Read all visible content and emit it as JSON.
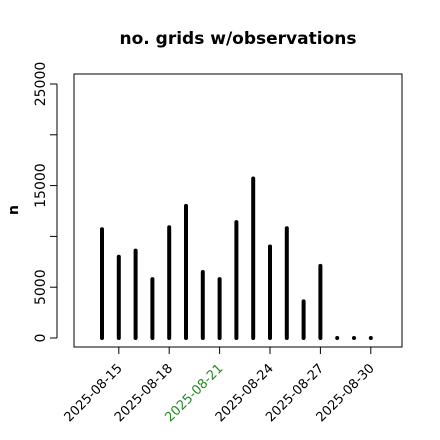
{
  "chart_data": {
    "type": "bar",
    "title": "no. grids w/observations",
    "xlabel": "",
    "ylabel": "n",
    "ylim": [
      0,
      26000
    ],
    "yticks": [
      0,
      5000,
      15000,
      25000
    ],
    "grid": false,
    "x": [
      "2025-08-14",
      "2025-08-15",
      "2025-08-16",
      "2025-08-17",
      "2025-08-18",
      "2025-08-19",
      "2025-08-20",
      "2025-08-21",
      "2025-08-22",
      "2025-08-23",
      "2025-08-24",
      "2025-08-25",
      "2025-08-26",
      "2025-08-27",
      "2025-08-28",
      "2025-08-29",
      "2025-08-30"
    ],
    "values": [
      10700,
      8000,
      8600,
      5800,
      10900,
      13000,
      6500,
      5800,
      11400,
      15700,
      9000,
      10800,
      3600,
      7100,
      0,
      0,
      0
    ],
    "xtick_labels": [
      {
        "label": "2025-08-15",
        "color": "#000000"
      },
      {
        "label": "2025-08-18",
        "color": "#000000"
      },
      {
        "label": "2025-08-21",
        "color": "#228B22"
      },
      {
        "label": "2025-08-24",
        "color": "#000000"
      },
      {
        "label": "2025-08-27",
        "color": "#000000"
      },
      {
        "label": "2025-08-30",
        "color": "#000000"
      }
    ],
    "bar_color": "#000000"
  }
}
